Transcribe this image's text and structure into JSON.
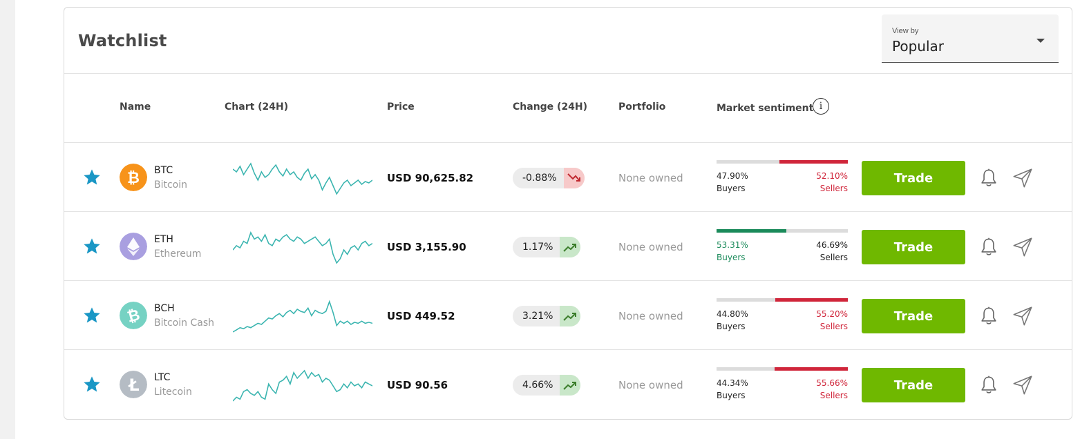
{
  "header": {
    "title": "Watchlist",
    "view_by": {
      "label": "View by",
      "value": "Popular"
    }
  },
  "columns": {
    "name": "Name",
    "chart": "Chart (24H)",
    "price": "Price",
    "change": "Change (24H)",
    "portfolio": "Portfolio",
    "sentiment": "Market sentiment",
    "info_icon": "i"
  },
  "colors": {
    "accent": "#1a97c5",
    "trade": "#6fb800",
    "buyers_green": "#1a8a5a",
    "sellers_red": "#d0253a",
    "sparkline": "#3bb5b0"
  },
  "rows": [
    {
      "symbol": "BTC",
      "name": "Bitcoin",
      "icon": "bitcoin-icon",
      "icon_color": "#f7931a",
      "price": "USD 90,625.82",
      "change": "-0.88%",
      "direction": "down",
      "portfolio": "None owned",
      "buyers_pct": "47.90%",
      "buyers_label": "Buyers",
      "buyers_value": 0.479,
      "sellers_pct": "52.10%",
      "sellers_label": "Sellers",
      "majority": "sellers",
      "trade_label": "Trade",
      "spark": [
        30,
        32,
        28,
        34,
        30,
        26,
        33,
        38,
        32,
        36,
        34,
        30,
        27,
        32,
        35,
        30,
        34,
        32,
        36,
        38,
        33,
        30,
        37,
        34,
        38,
        45,
        40,
        36,
        42,
        48,
        44,
        40,
        38,
        42,
        40,
        38,
        41,
        39,
        40,
        38
      ]
    },
    {
      "symbol": "ETH",
      "name": "Ethereum",
      "icon": "ethereum-icon",
      "icon_color": "#a99fe0",
      "price": "USD 3,155.90",
      "change": "1.17%",
      "direction": "up",
      "portfolio": "None owned",
      "buyers_pct": "53.31%",
      "buyers_label": "Buyers",
      "buyers_value": 0.5331,
      "sellers_pct": "46.69%",
      "sellers_label": "Sellers",
      "majority": "buyers",
      "trade_label": "Trade",
      "spark": [
        46,
        44,
        45,
        42,
        43,
        38,
        41,
        40,
        42,
        39,
        43,
        44,
        41,
        42,
        40,
        39,
        41,
        42,
        40,
        41,
        43,
        42,
        41,
        40,
        42,
        44,
        43,
        41,
        48,
        52,
        50,
        46,
        48,
        45,
        44,
        46,
        43,
        42,
        44,
        43
      ]
    },
    {
      "symbol": "BCH",
      "name": "Bitcoin Cash",
      "icon": "bitcoin-cash-icon",
      "icon_color": "#76d2c3",
      "price": "USD 449.52",
      "change": "3.21%",
      "direction": "up",
      "portfolio": "None owned",
      "buyers_pct": "44.80%",
      "buyers_label": "Buyers",
      "buyers_value": 0.448,
      "sellers_pct": "55.20%",
      "sellers_label": "Sellers",
      "majority": "sellers",
      "trade_label": "Trade",
      "spark": [
        48,
        46,
        44,
        45,
        43,
        44,
        42,
        40,
        41,
        38,
        35,
        36,
        33,
        31,
        34,
        30,
        28,
        31,
        27,
        29,
        30,
        26,
        33,
        28,
        30,
        31,
        29,
        20,
        30,
        42,
        38,
        40,
        38,
        41,
        39,
        40,
        38,
        40,
        39,
        40
      ]
    },
    {
      "symbol": "LTC",
      "name": "Litecoin",
      "icon": "litecoin-icon",
      "icon_color": "#b5bcc4",
      "price": "USD 90.56",
      "change": "4.66%",
      "direction": "up",
      "portfolio": "None owned",
      "buyers_pct": "44.34%",
      "buyers_label": "Buyers",
      "buyers_value": 0.4434,
      "sellers_pct": "55.66%",
      "sellers_label": "Sellers",
      "majority": "sellers",
      "trade_label": "Trade",
      "spark": [
        48,
        44,
        46,
        38,
        36,
        40,
        42,
        38,
        44,
        46,
        30,
        36,
        40,
        28,
        26,
        22,
        30,
        18,
        24,
        20,
        16,
        24,
        18,
        22,
        20,
        28,
        24,
        26,
        32,
        38,
        36,
        30,
        34,
        28,
        32,
        30,
        34,
        28,
        30,
        32
      ]
    }
  ]
}
